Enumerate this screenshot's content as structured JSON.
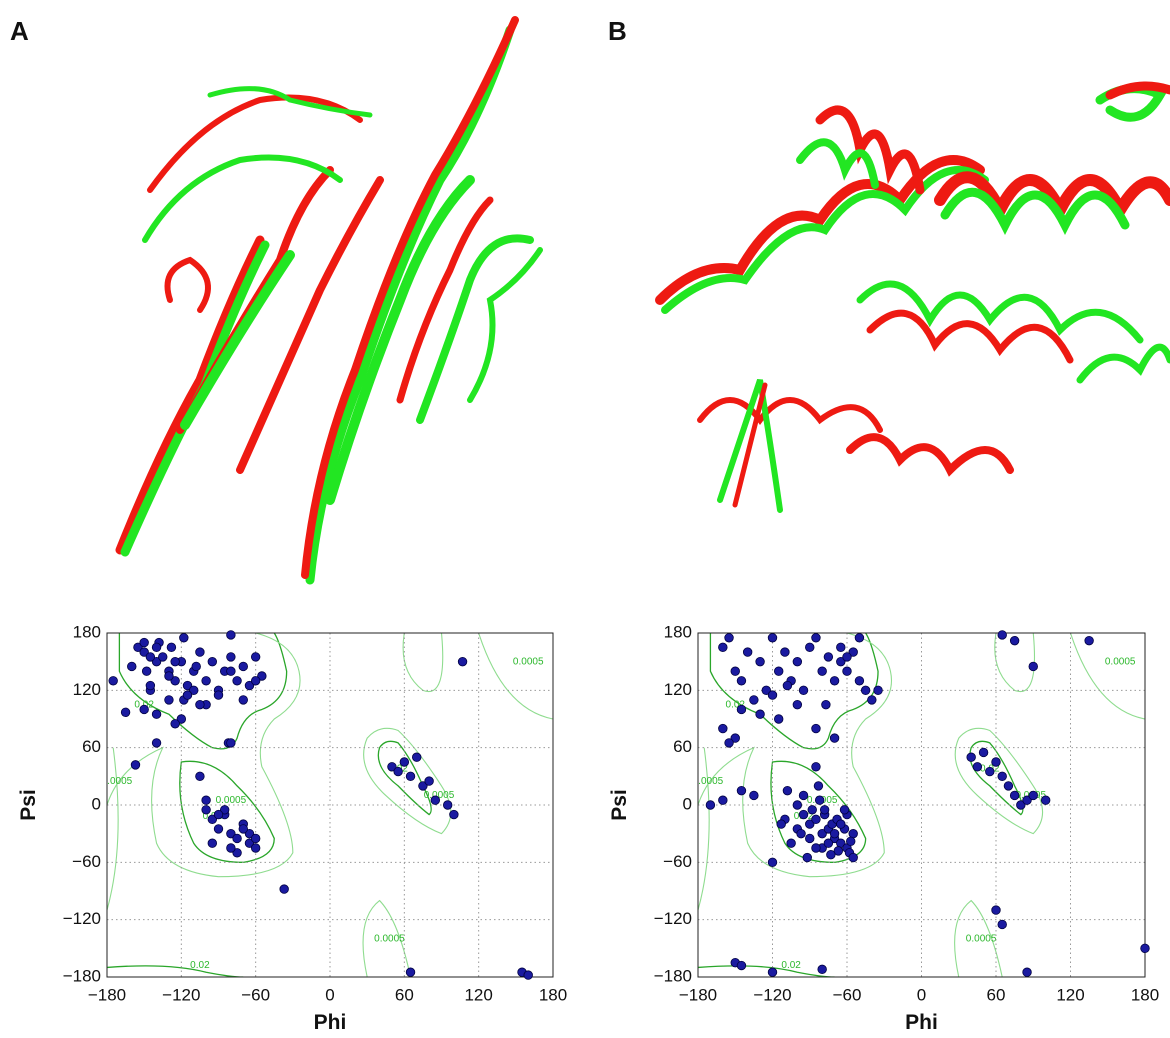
{
  "chart_data": [
    {
      "type": "scatter",
      "panel": "A",
      "xlabel": "Phi",
      "ylabel": "Psi",
      "color": "#1a1aa0",
      "grid": true,
      "xlim": [
        -180,
        180
      ],
      "ylim": [
        -180,
        180
      ],
      "xticks": [
        {
          "value": -180,
          "label": "−180"
        },
        {
          "value": -120,
          "label": "−120"
        },
        {
          "value": -60,
          "label": "−60"
        },
        0,
        60,
        120,
        180
      ],
      "yticks": [
        {
          "value": -180,
          "label": "−180"
        },
        {
          "value": -120,
          "label": "−120"
        },
        {
          "value": -60,
          "label": "−60"
        },
        0,
        60,
        120,
        180
      ],
      "x": [
        -175,
        -165,
        -160,
        -155,
        -150,
        -148,
        -145,
        -140,
        -138,
        -135,
        -130,
        -128,
        -125,
        -120,
        -118,
        -115,
        -110,
        -105,
        -100,
        -95,
        -90,
        -85,
        -80,
        -75,
        -70,
        -65,
        -60,
        -55,
        -150,
        -140,
        -130,
        -120,
        -110,
        -100,
        -90,
        -80,
        -70,
        -60,
        -145,
        -125,
        -105,
        -82,
        -150,
        -140,
        -118,
        -108,
        -125,
        -115,
        -130,
        -145,
        -100,
        -95,
        -90,
        -85,
        -80,
        -75,
        -70,
        -65,
        -60,
        -95,
        -85,
        -75,
        -65,
        -105,
        -90,
        -70,
        -80,
        -60,
        -100,
        -157,
        -140,
        -37,
        -80,
        50,
        55,
        60,
        65,
        70,
        75,
        80,
        85,
        95,
        100,
        107,
        65,
        155,
        160,
        -80
      ],
      "values": [
        130,
        97,
        145,
        165,
        160,
        140,
        120,
        150,
        170,
        155,
        140,
        165,
        130,
        150,
        110,
        125,
        140,
        160,
        130,
        150,
        120,
        140,
        155,
        130,
        145,
        125,
        155,
        135,
        100,
        95,
        110,
        90,
        120,
        105,
        115,
        140,
        110,
        130,
        125,
        85,
        105,
        65,
        170,
        165,
        175,
        145,
        150,
        115,
        135,
        155,
        -5,
        -15,
        -25,
        -10,
        -30,
        -35,
        -20,
        -40,
        -45,
        -40,
        -5,
        -50,
        -30,
        30,
        -10,
        -25,
        -45,
        -35,
        5,
        42,
        65,
        -88,
        65,
        40,
        35,
        45,
        30,
        50,
        20,
        25,
        5,
        0,
        -10,
        150,
        -175,
        -175,
        -178,
        178
      ],
      "annotations": [
        {
          "text": "0.0005",
          "x": 160,
          "y": 150
        },
        {
          "text": "0.02",
          "x": -150,
          "y": 105
        },
        {
          "text": "0.0005",
          "x": -172,
          "y": 25
        },
        {
          "text": "0.0005",
          "x": -80,
          "y": 5
        },
        {
          "text": "0.02",
          "x": -95,
          "y": -12
        },
        {
          "text": "0.02",
          "x": 55,
          "y": 38
        },
        {
          "text": "0.0005",
          "x": 88,
          "y": 10
        },
        {
          "text": "0.0005",
          "x": 48,
          "y": -140
        },
        {
          "text": "0.02",
          "x": -105,
          "y": -168
        }
      ]
    },
    {
      "type": "scatter",
      "panel": "B",
      "xlabel": "Phi",
      "ylabel": "Psi",
      "color": "#1a1aa0",
      "grid": true,
      "xlim": [
        -180,
        180
      ],
      "ylim": [
        -180,
        180
      ],
      "xticks": [
        {
          "value": -180,
          "label": "−180"
        },
        {
          "value": -120,
          "label": "−120"
        },
        {
          "value": -60,
          "label": "−60"
        },
        0,
        60,
        120,
        180
      ],
      "yticks": [
        {
          "value": -180,
          "label": "−180"
        },
        {
          "value": -120,
          "label": "−120"
        },
        {
          "value": -60,
          "label": "−60"
        },
        0,
        60,
        120,
        180
      ],
      "x": [
        -160,
        -155,
        -150,
        -145,
        -140,
        -135,
        -130,
        -125,
        -120,
        -115,
        -110,
        -105,
        -100,
        -95,
        -90,
        -85,
        -80,
        -75,
        -70,
        -65,
        -60,
        -55,
        -50,
        -45,
        -40,
        -35,
        -145,
        -130,
        -115,
        -100,
        -85,
        -70,
        -120,
        -108,
        -77,
        -150,
        -160,
        -155,
        -65,
        -60,
        -100,
        -95,
        -90,
        -85,
        -80,
        -75,
        -70,
        -65,
        -60,
        -55,
        -95,
        -88,
        -82,
        -78,
        -72,
        -68,
        -62,
        -58,
        -90,
        -80,
        -75,
        -70,
        -65,
        -60,
        -100,
        -105,
        -110,
        -92,
        -85,
        -78,
        -108,
        -113,
        -120,
        -67,
        -73,
        -57,
        -55,
        -62,
        -83,
        -97,
        -145,
        -160,
        -170,
        -135,
        -85,
        40,
        45,
        50,
        55,
        60,
        65,
        70,
        75,
        80,
        85,
        90,
        100,
        60,
        65,
        -50,
        65,
        75,
        90,
        135,
        180,
        -150,
        -145,
        -120,
        -80,
        85
      ],
      "values": [
        165,
        175,
        140,
        130,
        160,
        110,
        150,
        120,
        175,
        140,
        160,
        130,
        150,
        120,
        165,
        175,
        140,
        155,
        130,
        150,
        140,
        160,
        130,
        120,
        110,
        120,
        100,
        95,
        90,
        105,
        80,
        70,
        115,
        125,
        105,
        70,
        80,
        65,
        165,
        155,
        0,
        -10,
        -20,
        -15,
        -30,
        -25,
        -35,
        -40,
        -45,
        -30,
        10,
        -5,
        5,
        -10,
        -20,
        -15,
        -25,
        -50,
        -35,
        -45,
        -40,
        -30,
        -20,
        -10,
        -25,
        -40,
        -15,
        -55,
        -45,
        -5,
        15,
        -20,
        -60,
        -48,
        -52,
        -38,
        -55,
        -5,
        20,
        -30,
        15,
        5,
        0,
        10,
        40,
        50,
        40,
        55,
        35,
        45,
        30,
        20,
        10,
        0,
        5,
        10,
        5,
        -110,
        -125,
        175,
        178,
        172,
        145,
        172,
        -150,
        -165,
        -168,
        -175,
        -172,
        -175
      ],
      "annotations": [
        {
          "text": "0.0005",
          "x": 160,
          "y": 150
        },
        {
          "text": "0.02",
          "x": -150,
          "y": 105
        },
        {
          "text": "0.0005",
          "x": -172,
          "y": 25
        },
        {
          "text": "0.0005",
          "x": -80,
          "y": 5
        },
        {
          "text": "0.02",
          "x": -95,
          "y": -12
        },
        {
          "text": "0.02",
          "x": 55,
          "y": 38
        },
        {
          "text": "0.0005",
          "x": 88,
          "y": 10
        },
        {
          "text": "0.0005",
          "x": 48,
          "y": -140
        },
        {
          "text": "0.02",
          "x": -105,
          "y": -168
        }
      ]
    }
  ]
}
